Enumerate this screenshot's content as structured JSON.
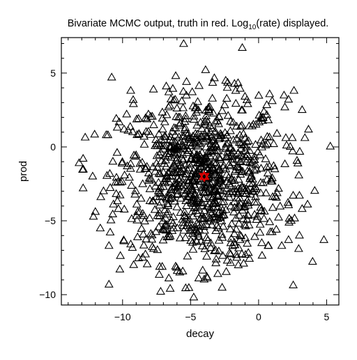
{
  "chart_data": {
    "type": "scatter",
    "title": "Bivariate MCMC output, truth in red. Log",
    "title_sub": "10",
    "title_suffix": "(rate) displayed.",
    "xlabel": "decay",
    "ylabel": "prod",
    "xlim": [
      -14.5,
      5.9
    ],
    "ylim": [
      -10.7,
      7.4
    ],
    "xticks": [
      -10,
      -5,
      0,
      5
    ],
    "yticks": [
      -10,
      -5,
      0,
      5
    ],
    "xtick_labels": [
      "−10",
      "−5",
      "0",
      "5"
    ],
    "ytick_labels": [
      "−10",
      "−5",
      "0",
      "5"
    ],
    "marker": "triangle-open",
    "colors": {
      "samples": "#000000",
      "truth": "#e00000"
    },
    "truth": {
      "x": -4.0,
      "y": -2.0
    },
    "cluster": {
      "count": 1000,
      "center_x": -4.2,
      "center_y": -2.2,
      "sd_x": 3.0,
      "sd_y": 2.8
    },
    "samples": [
      [
        -1.2,
        6.7
      ],
      [
        -3.9,
        5.2
      ],
      [
        -10.8,
        4.7
      ],
      [
        -5.3,
        4.4
      ],
      [
        -2.3,
        4.0
      ],
      [
        -9.4,
        3.8
      ],
      [
        -6.6,
        3.7
      ],
      [
        2.6,
        3.8
      ],
      [
        -1.0,
        3.4
      ],
      [
        1.0,
        3.1
      ],
      [
        2.2,
        3.2
      ],
      [
        -9.2,
        2.9
      ],
      [
        3.2,
        2.5
      ],
      [
        -3.6,
        2.7
      ],
      [
        -0.8,
        2.9
      ],
      [
        -6.0,
        2.6
      ],
      [
        -8.1,
        2.2
      ],
      [
        -9.7,
        2.2
      ],
      [
        -11.2,
        0.8
      ],
      [
        2.0,
        0.6
      ],
      [
        3.4,
        0.6
      ],
      [
        -12.9,
        -0.8
      ],
      [
        -10.4,
        -0.4
      ],
      [
        2.5,
        -0.3
      ],
      [
        -12.2,
        -2.0
      ],
      [
        -12.9,
        -2.8
      ],
      [
        3.0,
        -3.3
      ],
      [
        -11.6,
        -3.4
      ],
      [
        -11.4,
        -3.0
      ],
      [
        -12.0,
        -4.4
      ],
      [
        3.2,
        -4.2
      ],
      [
        3.6,
        -3.9
      ],
      [
        2.4,
        -5.0
      ],
      [
        1.3,
        -5.6
      ],
      [
        -11.0,
        -6.7
      ],
      [
        -9.4,
        -6.6
      ],
      [
        4.8,
        -6.3
      ],
      [
        3.0,
        -6.0
      ],
      [
        1.7,
        -6.7
      ],
      [
        0.7,
        -6.7
      ],
      [
        2.2,
        -6.3
      ],
      [
        -10.2,
        -8.3
      ],
      [
        -7.2,
        -9.8
      ],
      [
        -6.5,
        -9.6
      ],
      [
        -4.4,
        -8.9
      ],
      [
        -3.8,
        -8.8
      ],
      [
        -6.6,
        -8.9
      ],
      [
        -5.8,
        -8.5
      ],
      [
        -3.0,
        -8.6
      ],
      [
        -1.1,
        -7.9
      ],
      [
        -1.6,
        -7.5
      ],
      [
        -2.3,
        -7.7
      ],
      [
        -4.0,
        -2.0
      ]
    ]
  }
}
